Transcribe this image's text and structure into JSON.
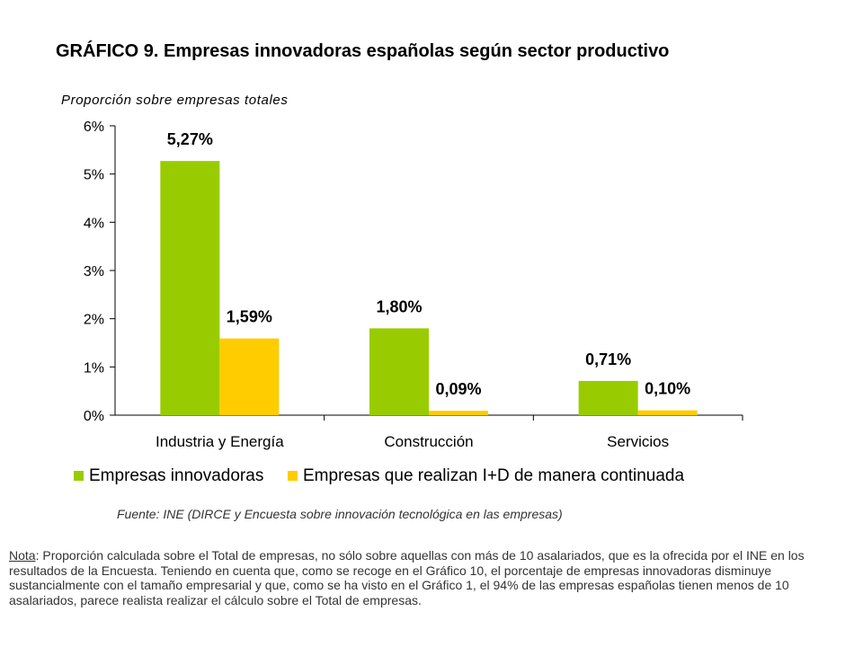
{
  "header": {
    "title": "GRÁFICO 9. Empresas innovadoras españolas según sector productivo"
  },
  "chart_data": {
    "type": "bar",
    "ylabel": "Proporción sobre empresas totales",
    "categories": [
      "Industria y Energía",
      "Construcción",
      "Servicios"
    ],
    "series": [
      {
        "name": "Empresas innovadoras",
        "color": "#99cc00",
        "values": [
          5.27,
          1.8,
          0.71
        ],
        "labels": [
          "5,27%",
          "1,80%",
          "0,71%"
        ]
      },
      {
        "name": "Empresas que realizan I+D de manera continuada",
        "color": "#ffcc00",
        "values": [
          1.59,
          0.09,
          0.1
        ],
        "labels": [
          "1,59%",
          "0,09%",
          "0,10%"
        ]
      }
    ],
    "ylim": [
      0,
      6
    ],
    "yticks": [
      "0%",
      "1%",
      "2%",
      "3%",
      "4%",
      "5%",
      "6%"
    ],
    "grid": false,
    "legend": "bottom"
  },
  "footer": {
    "source": "Fuente: INE (DIRCE y Encuesta sobre innovación tecnológica en las empresas)",
    "note_label": "Nota",
    "note_text": ": Proporción calculada sobre el Total de empresas, no sólo sobre aquellas con más de 10 asalariados, que es la ofrecida por el INE en los resultados de la Encuesta. Teniendo en cuenta que, como se recoge en el Gráfico 10, el porcentaje de empresas innovadoras disminuye sustancialmente con el tamaño empresarial y que, como se ha visto en el Gráfico 1, el 94% de las empresas españolas tienen menos de 10 asalariados, parece realista realizar el cálculo sobre el Total de empresas."
  }
}
